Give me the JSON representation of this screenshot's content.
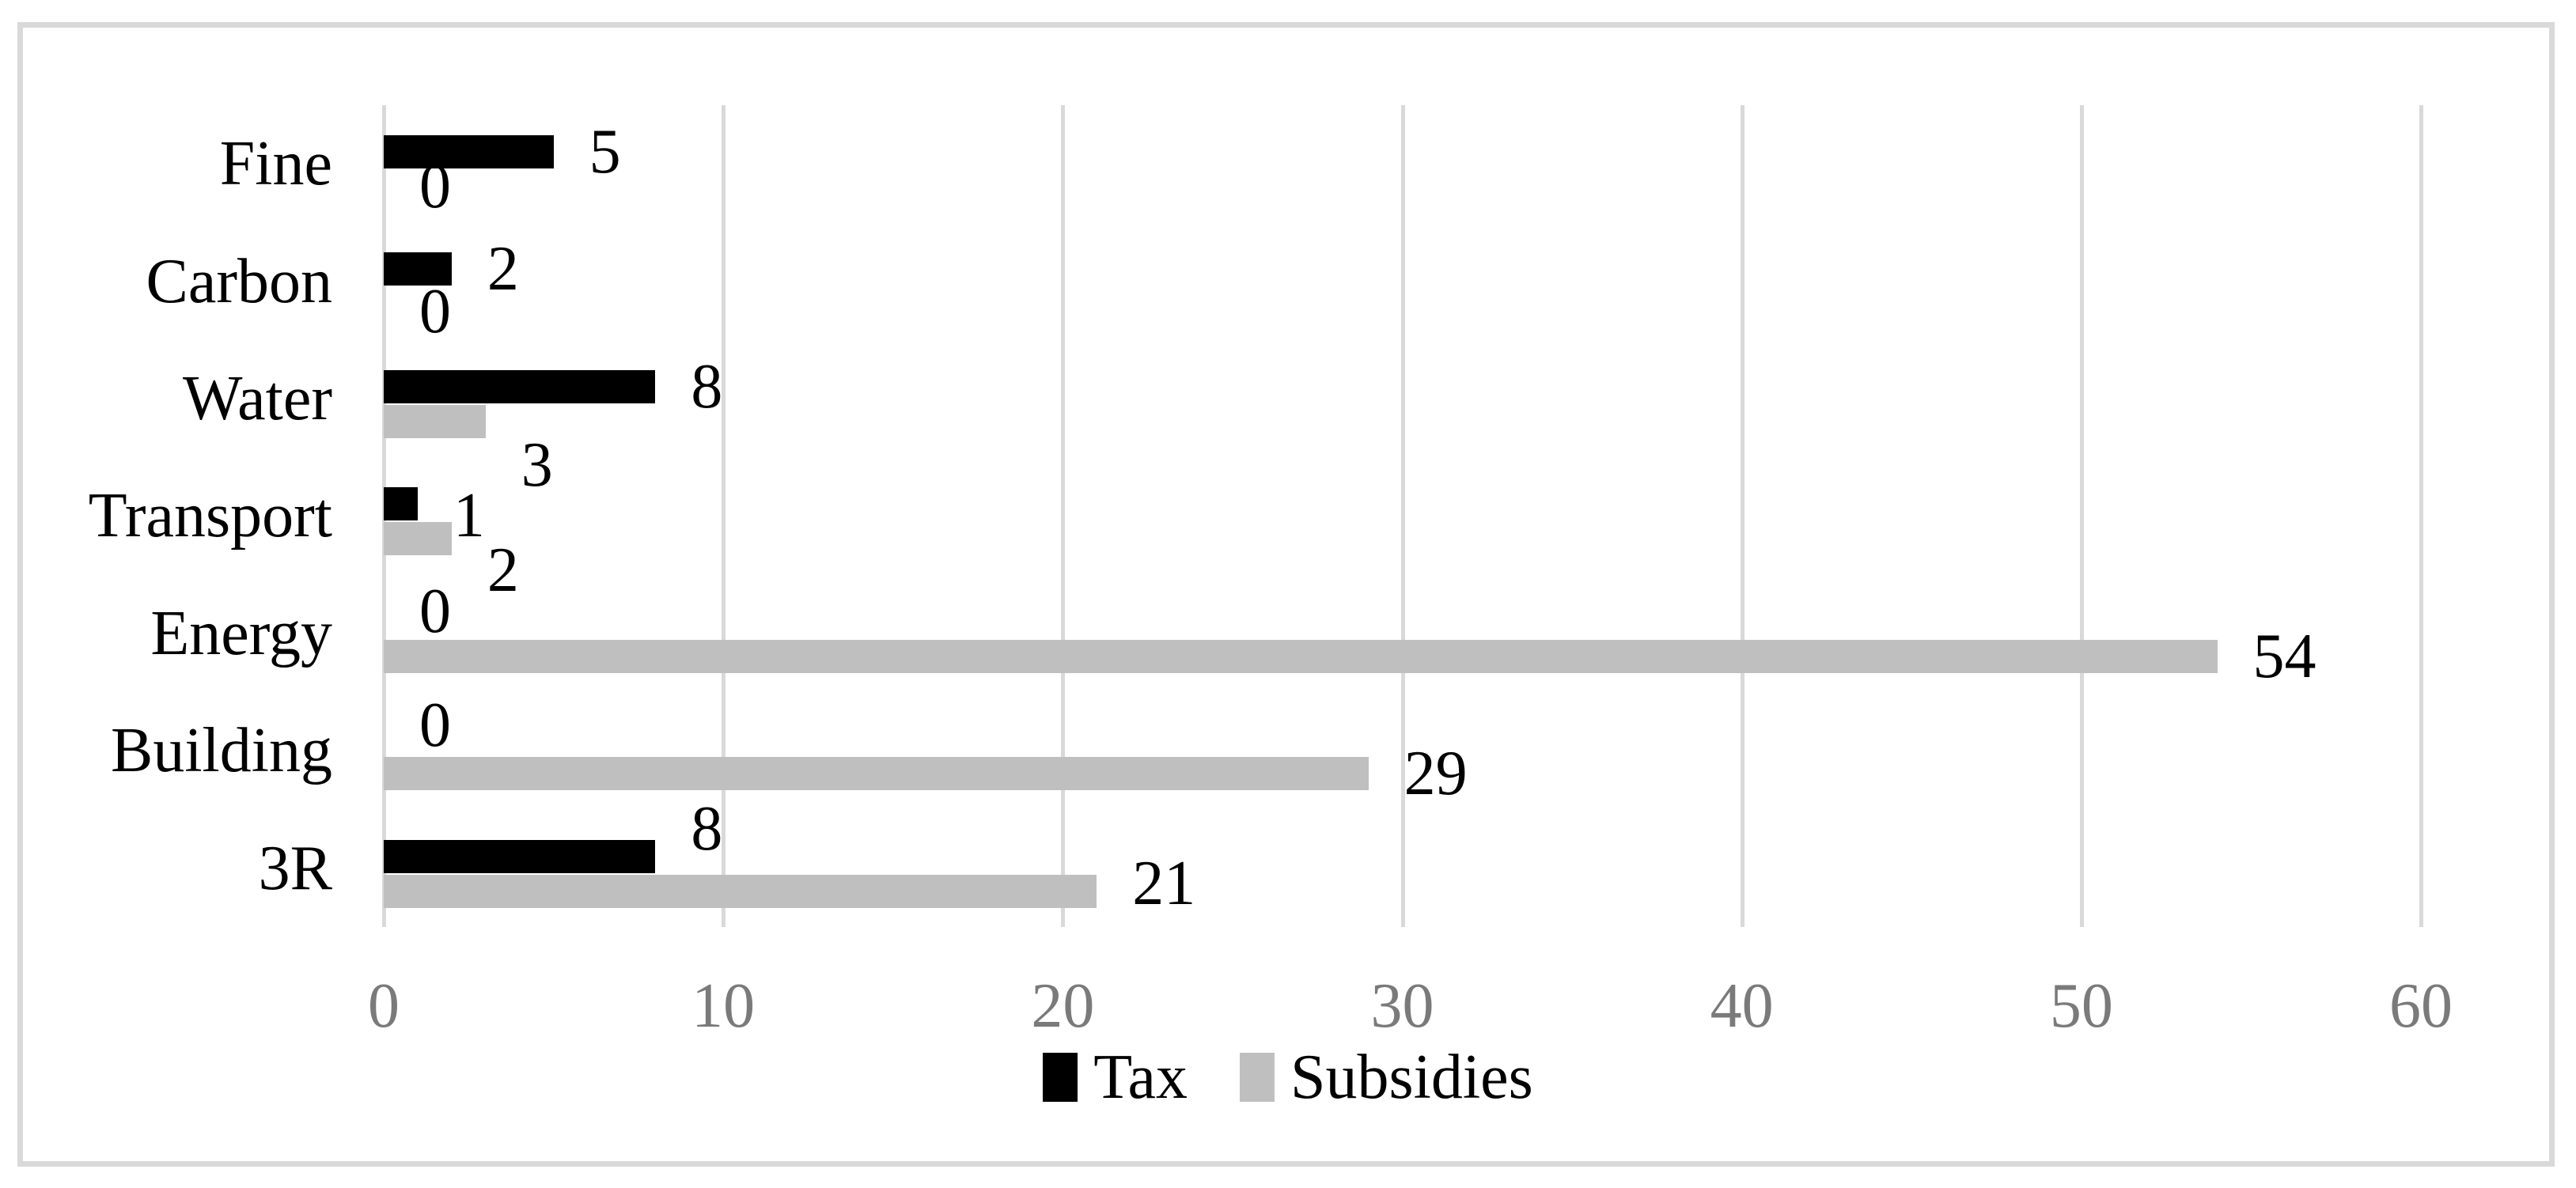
{
  "chart_data": {
    "type": "bar",
    "orientation": "horizontal",
    "title": "",
    "xlabel": "",
    "ylabel": "",
    "categories": [
      "Fine",
      "Carbon",
      "Water",
      "Transport",
      "Energy",
      "Building",
      "3R"
    ],
    "series": [
      {
        "name": "Tax",
        "color": "#000000",
        "values": [
          5,
          2,
          8,
          1,
          0,
          0,
          8
        ]
      },
      {
        "name": "Subsidies",
        "color": "#bfbfbf",
        "values": [
          0,
          0,
          3,
          2,
          54,
          29,
          21
        ]
      }
    ],
    "data_labels_shown": true,
    "xlim": [
      0,
      60
    ],
    "xticks": [
      0,
      10,
      20,
      30,
      40,
      50,
      60
    ],
    "grid": true,
    "gridline_color": "#d9d9d9",
    "tick_label_color": "#7a7a7a",
    "border_color": "#d9d9d9",
    "legend_position": "bottom",
    "label_offsets_y": {
      "Tax": [
        0,
        0,
        0,
        15,
        -13,
        -17,
        -35
      ],
      "Subsidies": [
        0,
        10,
        55,
        40,
        0,
        0,
        -10
      ]
    }
  }
}
